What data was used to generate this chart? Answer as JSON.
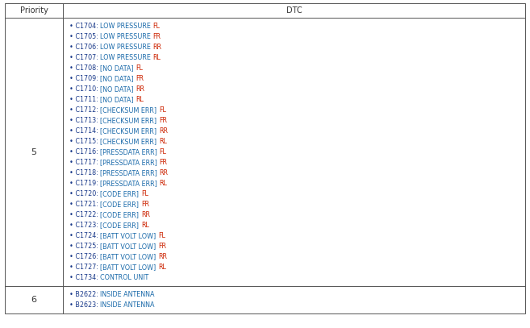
{
  "header": [
    "Priority",
    "DTC"
  ],
  "border_color": "#555555",
  "header_text_color": "#333333",
  "priority_5": "5",
  "priority_6": "6",
  "entries_5": [
    {
      "code": "C1704: ",
      "desc": "LOW PRESSURE ",
      "loc": "FL"
    },
    {
      "code": "C1705: ",
      "desc": "LOW PRESSURE ",
      "loc": "FR"
    },
    {
      "code": "C1706: ",
      "desc": "LOW PRESSURE ",
      "loc": "RR"
    },
    {
      "code": "C1707: ",
      "desc": "LOW PRESSURE ",
      "loc": "RL"
    },
    {
      "code": "C1708: ",
      "desc": "[NO DATA] ",
      "loc": "FL"
    },
    {
      "code": "C1709: ",
      "desc": "[NO DATA] ",
      "loc": "FR"
    },
    {
      "code": "C1710: ",
      "desc": "[NO DATA] ",
      "loc": "RR"
    },
    {
      "code": "C1711: ",
      "desc": "[NO DATA] ",
      "loc": "RL"
    },
    {
      "code": "C1712: ",
      "desc": "[CHECKSUM ERR] ",
      "loc": "FL"
    },
    {
      "code": "C1713: ",
      "desc": "[CHECKSUM ERR] ",
      "loc": "FR"
    },
    {
      "code": "C1714: ",
      "desc": "[CHECKSUM ERR] ",
      "loc": "RR"
    },
    {
      "code": "C1715: ",
      "desc": "[CHECKSUM ERR] ",
      "loc": "RL"
    },
    {
      "code": "C1716: ",
      "desc": "[PRESSDATA ERR] ",
      "loc": "FL"
    },
    {
      "code": "C1717: ",
      "desc": "[PRESSDATA ERR] ",
      "loc": "FR"
    },
    {
      "code": "C1718: ",
      "desc": "[PRESSDATA ERR] ",
      "loc": "RR"
    },
    {
      "code": "C1719: ",
      "desc": "[PRESSDATA ERR] ",
      "loc": "RL"
    },
    {
      "code": "C1720: ",
      "desc": "[CODE ERR] ",
      "loc": "FL"
    },
    {
      "code": "C1721: ",
      "desc": "[CODE ERR] ",
      "loc": "FR"
    },
    {
      "code": "C1722: ",
      "desc": "[CODE ERR] ",
      "loc": "RR"
    },
    {
      "code": "C1723: ",
      "desc": "[CODE ERR] ",
      "loc": "RL"
    },
    {
      "code": "C1724: ",
      "desc": "[BATT VOLT LOW] ",
      "loc": "FL"
    },
    {
      "code": "C1725: ",
      "desc": "[BATT VOLT LOW] ",
      "loc": "FR"
    },
    {
      "code": "C1726: ",
      "desc": "[BATT VOLT LOW] ",
      "loc": "RR"
    },
    {
      "code": "C1727: ",
      "desc": "[BATT VOLT LOW] ",
      "loc": "RL"
    },
    {
      "code": "C1734: ",
      "desc": "CONTROL UNIT",
      "loc": ""
    }
  ],
  "entries_6": [
    {
      "code": "B2622: ",
      "desc": "INSIDE ANTENNA",
      "loc": ""
    },
    {
      "code": "B2623: ",
      "desc": "INSIDE ANTENNA",
      "loc": ""
    }
  ],
  "color_code": "#1a3a8a",
  "color_desc": "#1a6aaa",
  "color_loc": "#cc2200",
  "color_priority": "#333333",
  "bg_color": "#ffffff",
  "font_size": 5.8,
  "header_font_size": 7.0,
  "priority_font_size": 8.0,
  "bullet": "• "
}
